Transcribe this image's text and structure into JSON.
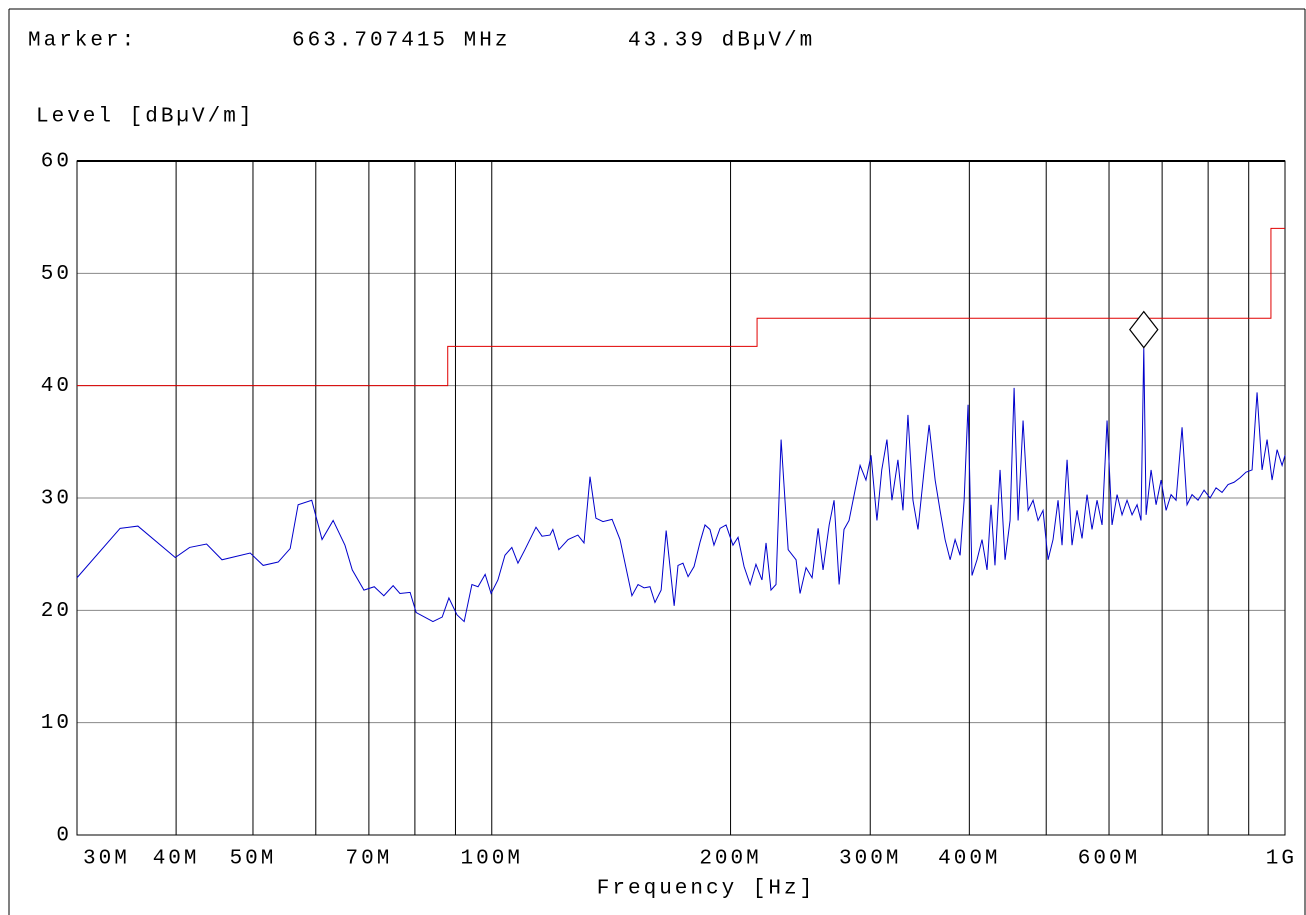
{
  "chart_data": {
    "type": "line",
    "marker": {
      "heading": "Marker:",
      "x": 663707415.0,
      "x_label": "663.707415 MHz",
      "y": 43.39,
      "y_label": "43.39 dBµV/m"
    },
    "ylabel": "Level [dBµV/m]",
    "xlabel": "Frequency [Hz]",
    "xscale": "log",
    "xlim": [
      30000000.0,
      1000000000.0
    ],
    "ylim": [
      0,
      60
    ],
    "yticks": [
      0,
      10,
      20,
      30,
      40,
      50,
      60
    ],
    "xticks": [
      {
        "value": 30000000.0,
        "label": "30M"
      },
      {
        "value": 40000000.0,
        "label": "40M"
      },
      {
        "value": 50000000.0,
        "label": "50M"
      },
      {
        "value": 70000000.0,
        "label": "70M"
      },
      {
        "value": 100000000.0,
        "label": "100M"
      },
      {
        "value": 200000000.0,
        "label": "200M"
      },
      {
        "value": 300000000.0,
        "label": "300M"
      },
      {
        "value": 400000000.0,
        "label": "400M"
      },
      {
        "value": 600000000.0,
        "label": "600M"
      },
      {
        "value": 1000000000.0,
        "label": "1G"
      }
    ],
    "xminor": [
      60000000.0,
      80000000.0,
      90000000.0,
      500000000.0,
      700000000.0,
      800000000.0,
      900000000.0
    ],
    "grid": true,
    "series": [
      {
        "color": "#0000cc",
        "step": false,
        "x": [
          30000000.0,
          34000000.0,
          35800000.0,
          39900000.0,
          41600000.0,
          43700000.0,
          45700000.0,
          49600000.0,
          51500000.0,
          53800000.0,
          55700000.0,
          57000000.0,
          59300000.0,
          61100000.0,
          63100000.0,
          65300000.0,
          66700000.0,
          69000000.0,
          71100000.0,
          73100000.0,
          75100000.0,
          76600000.0,
          78900000.0,
          80300000.0,
          84300000.0,
          86600000.0,
          88300000.0,
          90400000.0,
          92300000.0,
          94400000.0,
          96100000.0,
          98100000.0,
          99800000.0,
          101800000.0,
          103900000.0,
          106000000.0,
          107900000.0,
          110100000.0,
          113700000.0,
          115700000.0,
          118400000.0,
          119400000.0,
          121500000.0,
          124800000.0,
          128400000.0,
          130700000.0,
          133000000.0,
          135300000.0,
          138100000.0,
          141800000.0,
          145100000.0,
          150200000.0,
          152900000.0,
          155600000.0,
          158300000.0,
          160600000.0,
          163500000.0,
          165900000.0,
          169800000.0,
          171700000.0,
          174200000.0,
          176800000.0,
          179900000.0,
          183100000.0,
          185700000.0,
          188400000.0,
          190600000.0,
          194000000.0,
          197400000.0,
          201400000.0,
          204400000.0,
          208000000.0,
          211700000.0,
          215300000.0,
          219100000.0,
          221700000.0,
          224900000.0,
          228200000.0,
          231600000.0,
          236400000.0,
          241900000.0,
          244700000.0,
          249000000.0,
          253400000.0,
          257900000.0,
          261600000.0,
          266300000.0,
          270100000.0,
          274100000.0,
          278000000.0,
          282100000.0,
          287100000.0,
          291300000.0,
          296300000.0,
          300700000.0,
          305900000.0,
          310200000.0,
          314900000.0,
          319500000.0,
          325100000.0,
          329900000.0,
          334700000.0,
          339600000.0,
          344600000.0,
          350800000.0,
          355900000.0,
          362200000.0,
          367400000.0,
          372800000.0,
          378300000.0,
          383800000.0,
          389400000.0,
          394000000.0,
          398500000.0,
          403100000.0,
          409000000.0,
          415000000.0,
          421100000.0,
          426000000.0,
          430900000.0,
          437300000.0,
          443700000.0,
          450200000.0,
          455500000.0,
          460800000.0,
          467500000.0,
          474400000.0,
          481300000.0,
          488300000.0,
          495400000.0,
          502700000.0,
          510000000.0,
          517500000.0,
          523500000.0,
          531200000.0,
          538900000.0,
          546800000.0,
          554800000.0,
          562900000.0,
          571100000.0,
          579500000.0,
          588000000.0,
          596600000.0,
          605300000.0,
          614200000.0,
          623100000.0,
          632200000.0,
          641500000.0,
          650900000.0,
          658400000.0,
          663707415.0,
          668200000.0,
          677900000.0,
          687800000.0,
          697900000.0,
          708100000.0,
          718400000.0,
          728900000.0,
          741700000.0,
          752500000.0,
          763500000.0,
          776900000.0,
          790600000.0,
          804500000.0,
          818600000.0,
          833000000.0,
          847600000.0,
          862500000.0,
          877700000.0,
          893100000.0,
          908800000.0,
          922100000.0,
          935600000.0,
          949300000.0,
          963200000.0,
          977300000.0,
          991600000.0,
          1000000000.0
        ],
        "values": [
          22.9,
          27.3,
          27.5,
          24.7,
          25.6,
          25.9,
          24.5,
          25.1,
          24.0,
          24.3,
          25.5,
          29.4,
          29.8,
          26.3,
          28.0,
          25.8,
          23.6,
          21.8,
          22.1,
          21.3,
          22.2,
          21.5,
          21.6,
          19.8,
          19.0,
          19.4,
          21.1,
          19.6,
          19.0,
          22.3,
          22.1,
          23.2,
          21.5,
          22.7,
          24.9,
          25.6,
          24.2,
          25.4,
          27.4,
          26.6,
          26.7,
          27.2,
          25.4,
          26.3,
          26.7,
          26.0,
          31.9,
          28.2,
          27.9,
          28.1,
          26.3,
          21.3,
          22.3,
          22.0,
          22.1,
          20.7,
          21.8,
          27.1,
          20.4,
          24.0,
          24.2,
          23.0,
          23.9,
          26.1,
          27.6,
          27.2,
          25.8,
          27.3,
          27.6,
          25.8,
          26.5,
          23.9,
          22.3,
          24.1,
          22.7,
          26.0,
          21.8,
          22.3,
          35.2,
          25.4,
          24.5,
          21.5,
          23.8,
          22.9,
          27.3,
          23.6,
          27.6,
          29.8,
          22.3,
          27.2,
          28.0,
          30.7,
          32.9,
          31.6,
          33.8,
          28.0,
          32.5,
          35.2,
          29.8,
          33.4,
          28.9,
          37.4,
          29.8,
          27.2,
          32.5,
          36.5,
          31.6,
          28.9,
          26.3,
          24.5,
          26.3,
          24.9,
          29.8,
          38.3,
          23.1,
          24.5,
          26.3,
          23.6,
          29.4,
          24.0,
          32.5,
          24.5,
          28.0,
          39.8,
          28.0,
          36.9,
          28.9,
          29.8,
          28.0,
          28.9,
          24.5,
          26.3,
          29.8,
          25.8,
          33.4,
          25.8,
          28.9,
          26.4,
          30.3,
          27.2,
          29.8,
          27.6,
          36.9,
          27.6,
          30.3,
          28.5,
          29.8,
          28.5,
          29.4,
          28.0,
          43.39,
          28.5,
          32.5,
          29.4,
          31.6,
          28.9,
          30.3,
          29.8,
          36.3,
          29.4,
          30.3,
          29.8,
          30.7,
          30.0,
          30.9,
          30.5,
          31.2,
          31.4,
          31.8,
          32.3,
          32.5,
          39.4,
          32.5,
          35.2,
          31.6,
          34.3,
          32.9,
          33.8
        ]
      },
      {
        "color": "#e00000",
        "step": true,
        "x": [
          30000000.0,
          88000000.0,
          216000000.0,
          960000000.0,
          1000000000.0
        ],
        "values": [
          40,
          43.5,
          46,
          54,
          54
        ]
      }
    ]
  }
}
